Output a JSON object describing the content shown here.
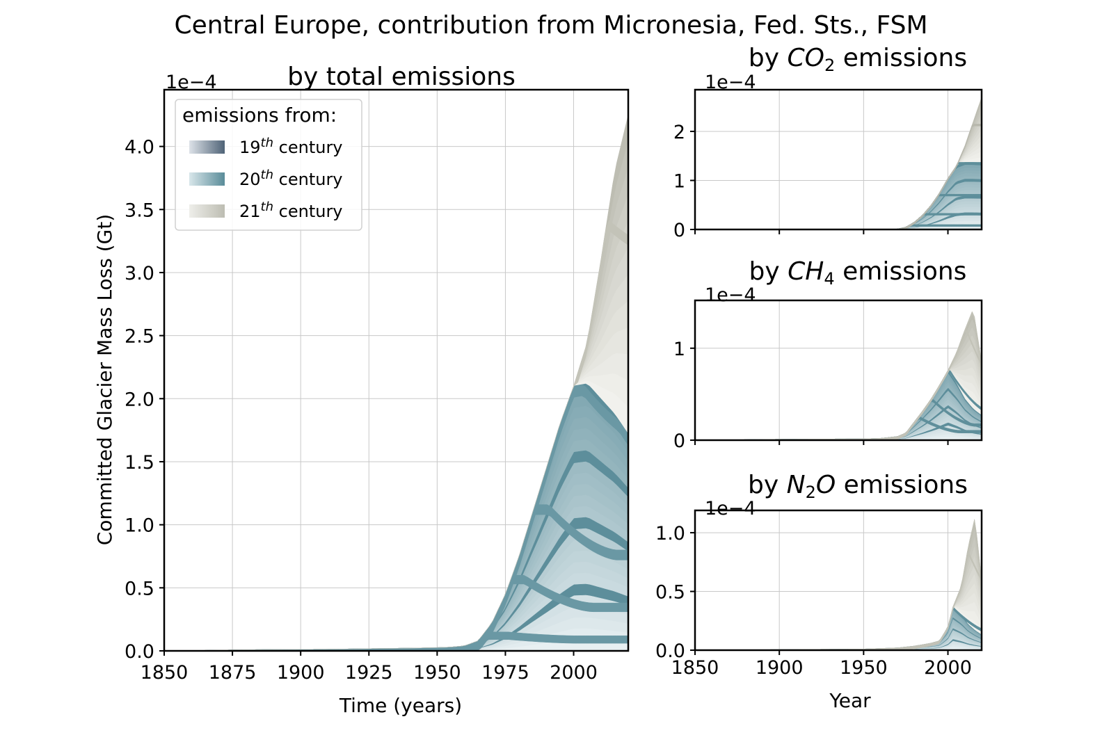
{
  "figure": {
    "suptitle": "Central Europe, contribution from Micronesia, Fed. Sts., FSM"
  },
  "legend": {
    "title": "emissions from:",
    "entries": [
      {
        "label": "19th century",
        "color_light": "#dde2e8",
        "color_dark": "#4f6377"
      },
      {
        "label": "20th century",
        "color_light": "#d8e6ea",
        "color_dark": "#5a8c99"
      },
      {
        "label": "21st century",
        "color_light": "#eeeeea",
        "color_dark": "#bdbdb2"
      }
    ]
  },
  "chart_data": [
    {
      "id": "total",
      "type": "area",
      "title": "by total emissions",
      "xlabel": "Time (years)",
      "ylabel": "Committed Glacier Mass Loss (Gt)",
      "offset_text": "1e−4",
      "xlim": [
        1850,
        2020
      ],
      "ylim": [
        0,
        4.45
      ],
      "xticks": [
        1850,
        1875,
        1900,
        1925,
        1950,
        1975,
        2000
      ],
      "yticks": [
        0.0,
        0.5,
        1.0,
        1.5,
        2.0,
        2.5,
        3.0,
        3.5,
        4.0
      ],
      "ytick_labels": [
        "0.0",
        "0.5",
        "1.0",
        "1.5",
        "2.0",
        "2.5",
        "3.0",
        "3.5",
        "4.0"
      ],
      "x": [
        1850,
        1860,
        1870,
        1880,
        1890,
        1900,
        1910,
        1920,
        1930,
        1940,
        1950,
        1955,
        1960,
        1965,
        1970,
        1975,
        1980,
        1985,
        1990,
        1995,
        2000,
        2005,
        2010,
        2015,
        2020
      ],
      "envelopes": {
        "19th": [
          0,
          0.002,
          0.006,
          0.009,
          0.011,
          0.012,
          0.013,
          0.014,
          0.014,
          0.015,
          0.016,
          0.016,
          0.017,
          0.017,
          0.018,
          0.018,
          0.018,
          0.018,
          0.018,
          0.018,
          0.018,
          0.018,
          0.018,
          0.018,
          0.018
        ],
        "20th": [
          0,
          0.002,
          0.006,
          0.009,
          0.011,
          0.012,
          0.013,
          0.016,
          0.019,
          0.022,
          0.026,
          0.03,
          0.04,
          0.08,
          0.22,
          0.45,
          0.75,
          1.1,
          1.45,
          1.8,
          2.1,
          2.12,
          2.0,
          1.88,
          1.72
        ],
        "21st": [
          0,
          0.002,
          0.006,
          0.009,
          0.011,
          0.012,
          0.013,
          0.016,
          0.019,
          0.022,
          0.026,
          0.03,
          0.04,
          0.08,
          0.22,
          0.45,
          0.75,
          1.1,
          1.45,
          1.8,
          2.1,
          2.45,
          3.1,
          3.8,
          4.25
        ]
      },
      "peaks": [
        {
          "decade": "1970s",
          "peak_x": 1976,
          "peak_y": 0.15,
          "tail_y": 0.12
        },
        {
          "decade": "1980s",
          "peak_x": 1982,
          "peak_y": 0.6,
          "tail_y": 0.38
        },
        {
          "decade": "1990s",
          "peak_x": 1991,
          "peak_y": 1.16,
          "tail_y": 0.8
        },
        {
          "decade": "2000s",
          "peak_x": 2002,
          "peak_y": 2.16,
          "tail_y": 1.72
        },
        {
          "decade": "2010s",
          "peak_x": 2011,
          "peak_y": 3.45,
          "tail_y": 3.15
        },
        {
          "decade": "2020",
          "peak_x": 2019,
          "peak_y": 4.25,
          "tail_y": 4.25
        }
      ]
    },
    {
      "id": "co2",
      "type": "area",
      "title_prefix": "by ",
      "title_gas": "CO",
      "title_sub": "2",
      "title_suffix": " emissions",
      "xlabel": "",
      "offset_text": "1e−4",
      "xlim": [
        1850,
        2020
      ],
      "ylim": [
        0,
        2.85
      ],
      "xticks": [
        1850,
        1900,
        1950,
        2000
      ],
      "yticks": [
        0,
        1,
        2
      ],
      "ytick_labels": [
        "0",
        "1",
        "2"
      ],
      "x": [
        1850,
        1900,
        1950,
        1960,
        1970,
        1975,
        1980,
        1985,
        1990,
        1995,
        2000,
        2005,
        2010,
        2015,
        2020
      ],
      "envelopes": {
        "20th": [
          0,
          0,
          0,
          0,
          0.01,
          0.05,
          0.15,
          0.3,
          0.5,
          0.75,
          1.05,
          1.3,
          1.37,
          1.37,
          1.36
        ],
        "21st": [
          0,
          0,
          0,
          0,
          0.01,
          0.05,
          0.15,
          0.3,
          0.5,
          0.75,
          1.05,
          1.3,
          1.7,
          2.2,
          2.7
        ]
      },
      "steps": [
        0.1,
        0.33,
        0.72,
        1.37,
        2.15
      ]
    },
    {
      "id": "ch4",
      "type": "area",
      "title_prefix": "by ",
      "title_gas": "CH",
      "title_sub": "4",
      "title_suffix": " emissions",
      "xlabel": "",
      "offset_text": "1e−4",
      "xlim": [
        1850,
        2020
      ],
      "ylim": [
        0,
        1.52
      ],
      "xticks": [
        1850,
        1900,
        1950,
        2000
      ],
      "yticks": [
        0,
        1
      ],
      "ytick_labels": [
        "0",
        "1"
      ],
      "x": [
        1850,
        1900,
        1950,
        1960,
        1970,
        1975,
        1980,
        1985,
        1990,
        1995,
        2000,
        2005,
        2010,
        2015,
        2020
      ],
      "envelopes": {
        "20th": [
          0,
          0.01,
          0.015,
          0.02,
          0.04,
          0.08,
          0.2,
          0.32,
          0.45,
          0.6,
          0.76,
          0.62,
          0.45,
          0.34,
          0.27
        ],
        "21st": [
          0,
          0.01,
          0.015,
          0.02,
          0.04,
          0.08,
          0.2,
          0.32,
          0.45,
          0.6,
          0.76,
          0.95,
          1.2,
          1.43,
          0.85
        ]
      },
      "peaks": [
        {
          "peak_x": 1982,
          "peak_y": 0.27
        },
        {
          "peak_x": 1991,
          "peak_y": 0.45
        },
        {
          "peak_x": 2001,
          "peak_y": 0.77
        },
        {
          "peak_x": 2011,
          "peak_y": 1.21
        },
        {
          "peak_x": 2018,
          "peak_y": 1.44
        }
      ]
    },
    {
      "id": "n2o",
      "type": "area",
      "title_prefix": "by ",
      "title_gas": "N",
      "title_sub": "2",
      "title_gas2": "O",
      "title_suffix": " emissions",
      "xlabel": "Year",
      "offset_text": "1e−4",
      "xlim": [
        1850,
        2020
      ],
      "ylim": [
        0,
        1.19
      ],
      "xticks": [
        1850,
        1900,
        1950,
        2000
      ],
      "yticks": [
        0.0,
        0.5,
        1.0
      ],
      "ytick_labels": [
        "0.0",
        "0.5",
        "1.0"
      ],
      "x": [
        1850,
        1900,
        1950,
        1960,
        1970,
        1980,
        1990,
        1995,
        2000,
        2003,
        2008,
        2012,
        2016,
        2020
      ],
      "envelopes": {
        "20th": [
          0,
          0.005,
          0.01,
          0.015,
          0.02,
          0.035,
          0.06,
          0.08,
          0.2,
          0.37,
          0.3,
          0.22,
          0.17,
          0.13
        ],
        "21st": [
          0,
          0.005,
          0.01,
          0.015,
          0.02,
          0.035,
          0.06,
          0.08,
          0.2,
          0.37,
          0.55,
          0.88,
          1.13,
          0.6
        ]
      },
      "peaks": [
        {
          "peak_x": 2003,
          "peak_y": 0.37
        },
        {
          "peak_x": 2011,
          "peak_y": 0.88
        },
        {
          "peak_x": 2017,
          "peak_y": 1.13
        }
      ]
    }
  ]
}
